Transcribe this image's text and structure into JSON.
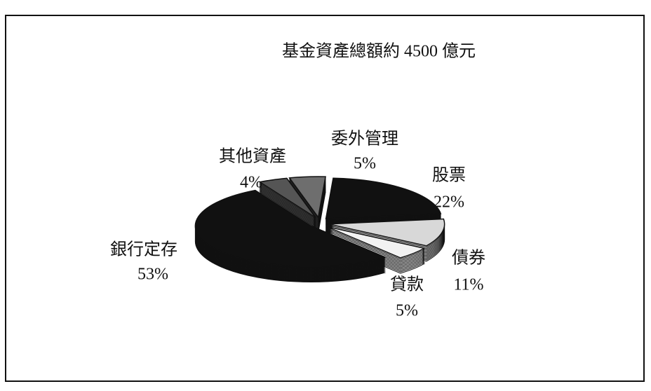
{
  "chart_data": {
    "type": "pie",
    "title": "基金資產總額約 4500 億元",
    "categories": [
      "委外管理",
      "股票",
      "債券",
      "貸款",
      "銀行定存",
      "其他資產"
    ],
    "values": [
      5,
      22,
      11,
      5,
      53,
      4
    ],
    "value_labels": [
      "5%",
      "22%",
      "11%",
      "5%",
      "53%",
      "4%"
    ],
    "colors": [
      "#6e6e6e",
      "#111111",
      "#d8d8d8",
      "#f2f2f2",
      "#111111",
      "#555555"
    ]
  }
}
